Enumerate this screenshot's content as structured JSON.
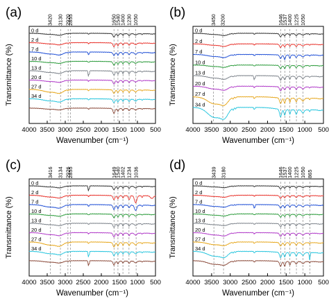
{
  "chart_data": [
    {
      "type": "line",
      "panel_label": "(a)",
      "xlabel": "Wavenumber (cm⁻¹)",
      "ylabel": "Transmittance (%)",
      "xlim": [
        4000,
        500
      ],
      "x_reversed": true,
      "xticks": [
        4000,
        3500,
        3000,
        2500,
        2000,
        1500,
        1000,
        500
      ],
      "grid": false,
      "y_tick_labels": false,
      "marker_lines": [
        {
          "value": 3420,
          "label": "3420"
        },
        {
          "value": 3130,
          "label": "3130"
        },
        {
          "value": 2920,
          "label": "2920"
        },
        {
          "value": 2855,
          "label": "2855"
        },
        {
          "value": 1650,
          "label": "1650"
        },
        {
          "value": 1540,
          "label": "1540"
        },
        {
          "value": 1400,
          "label": "1400"
        },
        {
          "value": 1230,
          "label": "1230"
        },
        {
          "value": 1050,
          "label": "1050"
        }
      ],
      "series": [
        {
          "name": "0 d",
          "color": "#303030",
          "y": [
            0.1,
            0.12,
            0.18,
            0.06,
            0.14,
            0.38,
            0.45,
            0.22,
            0.14,
            0.08,
            0.04
          ]
        },
        {
          "name": "2 d",
          "color": "#e8312a",
          "y": [
            0.1,
            0.14,
            0.2,
            0.06,
            0.18,
            0.42,
            0.55,
            0.25,
            0.18,
            0.08,
            0.04
          ]
        },
        {
          "name": "7 d",
          "color": "#1f4fd6",
          "y": [
            0.12,
            0.22,
            0.26,
            0.08,
            0.45,
            0.35,
            0.55,
            0.25,
            0.2,
            0.1,
            0.05
          ]
        },
        {
          "name": "10 d",
          "color": "#2a9a3a",
          "y": [
            0.1,
            0.14,
            0.18,
            0.06,
            0.18,
            0.4,
            0.52,
            0.24,
            0.18,
            0.08,
            0.04
          ]
        },
        {
          "name": "13 d",
          "color": "#7a8088",
          "y": [
            0.12,
            0.2,
            0.24,
            0.08,
            0.9,
            0.45,
            0.6,
            0.28,
            0.2,
            0.1,
            0.05
          ]
        },
        {
          "name": "20 d",
          "color": "#b03ac8",
          "y": [
            0.1,
            0.16,
            0.2,
            0.06,
            0.2,
            0.42,
            0.52,
            0.24,
            0.18,
            0.08,
            0.04
          ]
        },
        {
          "name": "27 d",
          "color": "#e6a61a",
          "y": [
            0.14,
            0.3,
            0.34,
            0.1,
            0.22,
            0.4,
            0.55,
            0.28,
            0.22,
            0.1,
            0.05
          ]
        },
        {
          "name": "34 d",
          "color": "#24c4dd",
          "y": [
            0.12,
            0.24,
            0.28,
            0.08,
            0.2,
            0.4,
            0.55,
            0.26,
            0.2,
            0.1,
            0.05
          ]
        },
        {
          "name": "",
          "color": "#8b4a3a",
          "y": [
            0.1,
            0.12,
            0.16,
            0.06,
            0.18,
            0.55,
            0.55,
            0.24,
            0.16,
            0.08,
            0.04
          ]
        }
      ]
    },
    {
      "type": "line",
      "panel_label": "(b)",
      "xlabel": "Wavenumber (cm⁻¹)",
      "ylabel": "Transmittance (%)",
      "xlim": [
        4000,
        500
      ],
      "x_reversed": true,
      "xticks": [
        4000,
        3500,
        3000,
        2500,
        2000,
        1500,
        1000,
        500
      ],
      "grid": false,
      "y_tick_labels": false,
      "marker_lines": [
        {
          "value": 3450,
          "label": "3450"
        },
        {
          "value": 3200,
          "label": "3200"
        },
        {
          "value": 1646,
          "label": "1646"
        },
        {
          "value": 1537,
          "label": "1537"
        },
        {
          "value": 1400,
          "label": "1400"
        },
        {
          "value": 1225,
          "label": "1225"
        },
        {
          "value": 1050,
          "label": "1050"
        }
      ],
      "series": [
        {
          "name": "0 d",
          "color": "#303030",
          "y": [
            0.1,
            0.12,
            0.18,
            0.06,
            0.14,
            0.3,
            0.4,
            0.2,
            0.14,
            0.08,
            0.04
          ]
        },
        {
          "name": "2 d",
          "color": "#e8312a",
          "y": [
            0.1,
            0.14,
            0.2,
            0.06,
            0.16,
            0.32,
            0.45,
            0.22,
            0.16,
            0.08,
            0.04
          ]
        },
        {
          "name": "7 d",
          "color": "#1f4fd6",
          "y": [
            0.12,
            0.2,
            0.24,
            0.08,
            0.18,
            0.35,
            0.8,
            0.25,
            0.18,
            0.1,
            0.05
          ]
        },
        {
          "name": "10 d",
          "color": "#2a9a3a",
          "y": [
            0.1,
            0.14,
            0.18,
            0.06,
            0.16,
            0.32,
            0.55,
            0.22,
            0.16,
            0.08,
            0.04
          ]
        },
        {
          "name": "13 d",
          "color": "#7a8088",
          "y": [
            0.14,
            0.24,
            0.28,
            0.1,
            0.6,
            0.4,
            0.65,
            0.28,
            0.22,
            0.1,
            0.05
          ]
        },
        {
          "name": "20 d",
          "color": "#b03ac8",
          "y": [
            0.16,
            0.28,
            0.3,
            0.1,
            0.2,
            0.4,
            0.55,
            0.26,
            0.2,
            0.1,
            0.05
          ]
        },
        {
          "name": "27 d",
          "color": "#e6a61a",
          "y": [
            0.3,
            0.7,
            0.6,
            0.16,
            0.25,
            0.55,
            0.9,
            0.35,
            0.28,
            0.14,
            0.06
          ]
        },
        {
          "name": "34 d",
          "color": "#24c4dd",
          "y": [
            0.5,
            1.0,
            0.8,
            0.2,
            0.3,
            0.75,
            1.0,
            0.45,
            0.3,
            0.16,
            0.07
          ]
        }
      ]
    },
    {
      "type": "line",
      "panel_label": "(c)",
      "xlabel": "Wavenumber (cm⁻¹)",
      "ylabel": "Transmittance (%)",
      "xlim": [
        4000,
        500
      ],
      "x_reversed": true,
      "xticks": [
        4000,
        3500,
        3000,
        2500,
        2000,
        1500,
        1000,
        500
      ],
      "grid": false,
      "y_tick_labels": false,
      "marker_lines": [
        {
          "value": 3416,
          "label": "3416"
        },
        {
          "value": 3134,
          "label": "3134"
        },
        {
          "value": 2926,
          "label": "2926"
        },
        {
          "value": 2855,
          "label": "2855"
        },
        {
          "value": 1649,
          "label": "1649"
        },
        {
          "value": 1540,
          "label": "1540"
        },
        {
          "value": 1402,
          "label": "1402"
        },
        {
          "value": 1234,
          "label": "1234"
        },
        {
          "value": 1036,
          "label": "1036"
        }
      ],
      "series": [
        {
          "name": "0 d",
          "color": "#303030",
          "y": [
            0.1,
            0.12,
            0.18,
            0.06,
            0.8,
            0.4,
            0.5,
            0.24,
            0.18,
            0.1,
            0.05
          ]
        },
        {
          "name": "2 d",
          "color": "#e8312a",
          "y": [
            0.12,
            0.2,
            0.24,
            0.08,
            0.2,
            0.45,
            0.6,
            0.45,
            0.8,
            0.2,
            0.3
          ]
        },
        {
          "name": "7 d",
          "color": "#1f4fd6",
          "y": [
            0.14,
            0.28,
            0.3,
            0.1,
            0.3,
            0.5,
            0.7,
            0.3,
            0.6,
            0.14,
            0.06
          ]
        },
        {
          "name": "10 d",
          "color": "#2a9a3a",
          "y": [
            0.1,
            0.16,
            0.2,
            0.06,
            0.18,
            0.4,
            0.55,
            0.24,
            0.18,
            0.08,
            0.04
          ]
        },
        {
          "name": "13 d",
          "color": "#7a8088",
          "y": [
            0.1,
            0.16,
            0.2,
            0.06,
            0.18,
            0.42,
            0.55,
            0.26,
            0.2,
            0.1,
            0.05
          ]
        },
        {
          "name": "20 d",
          "color": "#b03ac8",
          "y": [
            0.12,
            0.22,
            0.26,
            0.08,
            0.2,
            0.45,
            0.6,
            0.28,
            0.22,
            0.1,
            0.05
          ]
        },
        {
          "name": "27 d",
          "color": "#e6a61a",
          "y": [
            0.16,
            0.34,
            0.36,
            0.12,
            0.24,
            0.5,
            0.7,
            0.32,
            0.26,
            0.12,
            0.06
          ]
        },
        {
          "name": "34 d",
          "color": "#24c4dd",
          "y": [
            0.12,
            0.26,
            0.28,
            0.08,
            0.9,
            0.45,
            0.55,
            0.28,
            0.22,
            0.1,
            0.05
          ]
        },
        {
          "name": "",
          "color": "#8b4a3a",
          "y": [
            0.1,
            0.16,
            0.2,
            0.06,
            0.8,
            0.45,
            0.55,
            0.26,
            0.2,
            0.1,
            0.05
          ]
        }
      ]
    },
    {
      "type": "line",
      "panel_label": "(d)",
      "xlabel": "Wavenumber (cm⁻¹)",
      "ylabel": "Transmittance (%)",
      "xlim": [
        4000,
        500
      ],
      "x_reversed": true,
      "xticks": [
        4000,
        3500,
        3000,
        2500,
        2000,
        1500,
        1000,
        500
      ],
      "grid": false,
      "y_tick_labels": false,
      "marker_lines": [
        {
          "value": 3439,
          "label": "3439"
        },
        {
          "value": 3180,
          "label": "3180"
        },
        {
          "value": 1646,
          "label": "1646"
        },
        {
          "value": 1537,
          "label": "1537"
        },
        {
          "value": 1400,
          "label": "1400"
        },
        {
          "value": 1225,
          "label": "1225"
        },
        {
          "value": 1050,
          "label": "1050"
        },
        {
          "value": 865,
          "label": "865"
        }
      ],
      "series": [
        {
          "name": "0 d",
          "color": "#303030",
          "y": [
            0.1,
            0.12,
            0.16,
            0.06,
            0.14,
            0.3,
            0.4,
            0.2,
            0.14,
            0.1,
            0.04
          ]
        },
        {
          "name": "2 d",
          "color": "#e8312a",
          "y": [
            0.1,
            0.14,
            0.18,
            0.06,
            0.16,
            0.32,
            0.45,
            0.22,
            0.16,
            0.1,
            0.04
          ]
        },
        {
          "name": "7 d",
          "color": "#1f4fd6",
          "y": [
            0.12,
            0.2,
            0.22,
            0.08,
            0.6,
            0.35,
            0.55,
            0.24,
            0.18,
            0.12,
            0.05
          ]
        },
        {
          "name": "10 d",
          "color": "#2a9a3a",
          "y": [
            0.1,
            0.14,
            0.18,
            0.06,
            0.16,
            0.32,
            0.45,
            0.22,
            0.16,
            0.1,
            0.04
          ]
        },
        {
          "name": "13 d",
          "color": "#7a8088",
          "y": [
            0.1,
            0.16,
            0.2,
            0.06,
            0.18,
            0.34,
            0.5,
            0.24,
            0.18,
            0.12,
            0.05
          ]
        },
        {
          "name": "20 d",
          "color": "#b03ac8",
          "y": [
            0.14,
            0.26,
            0.28,
            0.08,
            0.2,
            0.38,
            0.55,
            0.28,
            0.22,
            0.14,
            0.05
          ]
        },
        {
          "name": "27 d",
          "color": "#e6a61a",
          "y": [
            0.16,
            0.3,
            0.3,
            0.1,
            0.22,
            0.4,
            0.6,
            0.3,
            0.24,
            0.16,
            0.06
          ]
        },
        {
          "name": "34 d",
          "color": "#24c4dd",
          "y": [
            0.3,
            0.55,
            0.5,
            0.14,
            0.26,
            0.6,
            0.9,
            0.4,
            0.3,
            0.8,
            0.06
          ]
        },
        {
          "name": "",
          "color": "#8b4a3a",
          "y": [
            0.2,
            0.4,
            0.36,
            0.1,
            0.22,
            0.55,
            0.95,
            0.3,
            0.22,
            0.14,
            0.05
          ]
        }
      ]
    }
  ]
}
